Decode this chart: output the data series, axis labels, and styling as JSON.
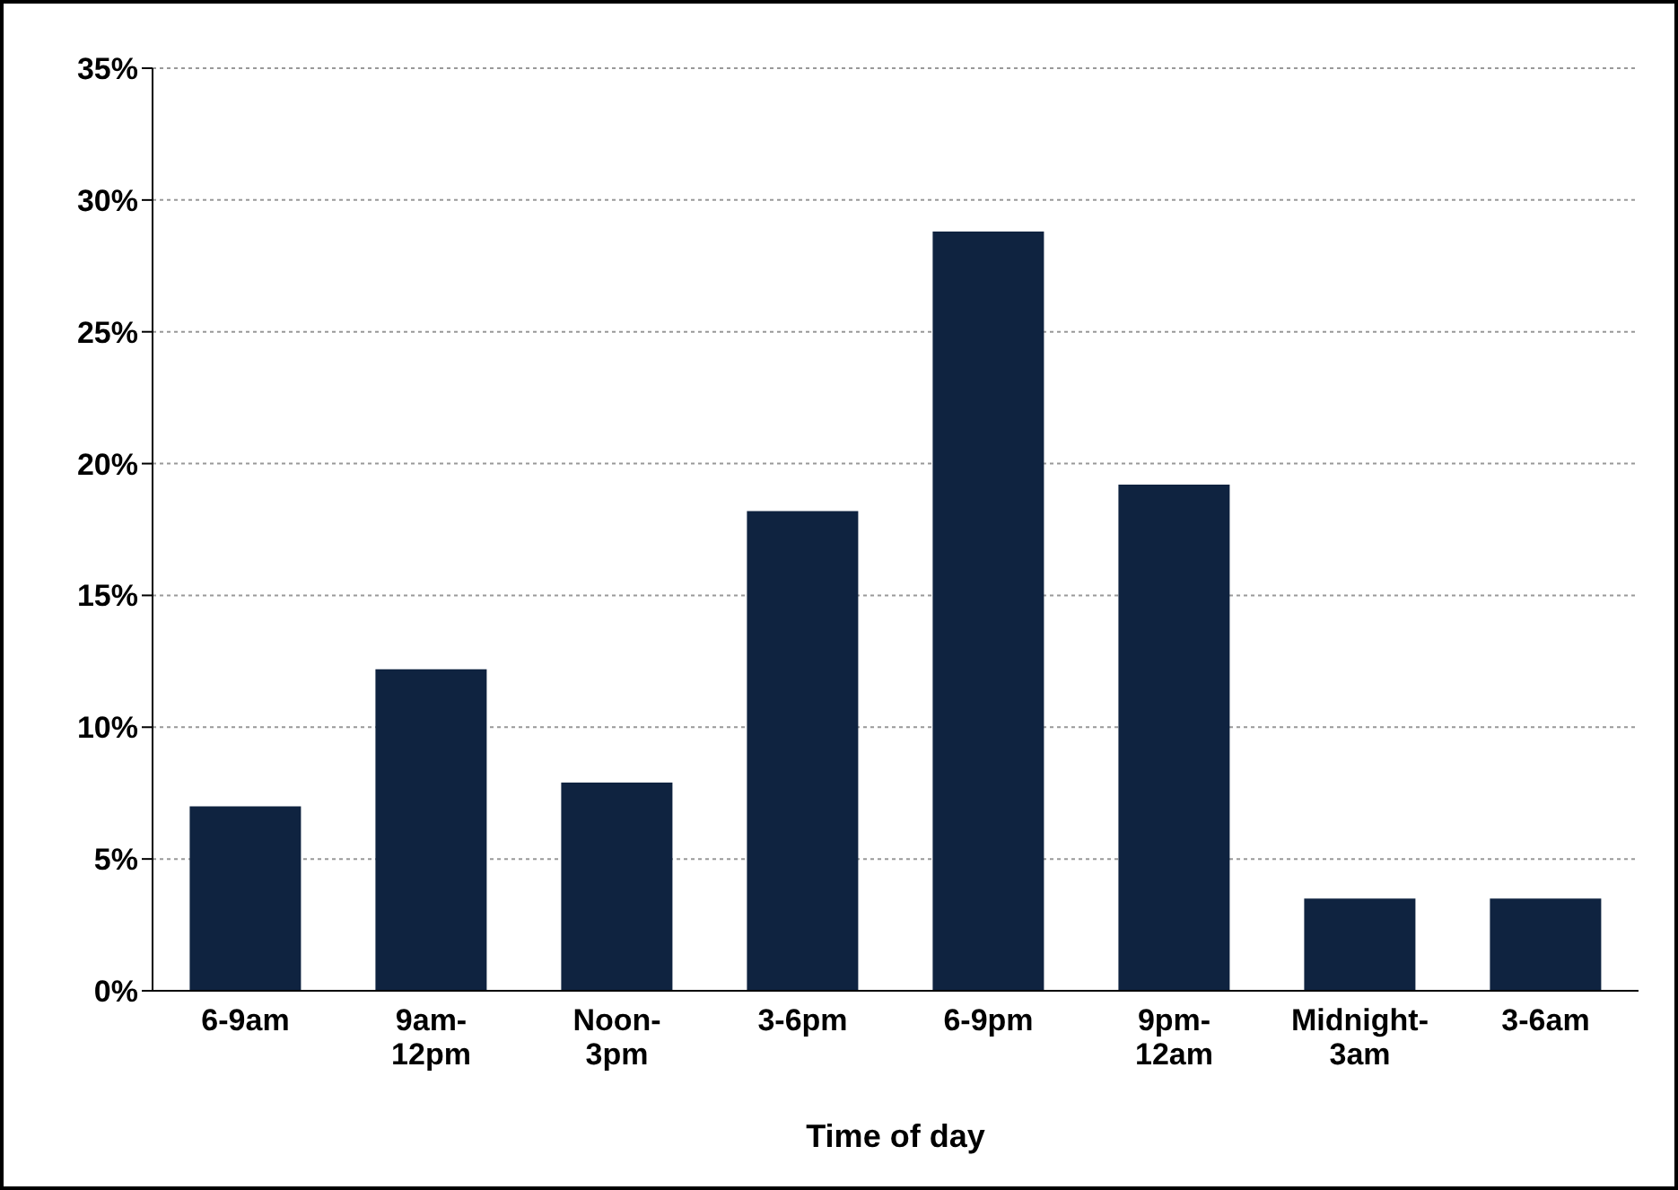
{
  "chart_data": {
    "type": "bar",
    "xlabel": "Time of day",
    "categories": [
      "6-9am",
      "9am-12pm",
      "Noon-3pm",
      "3-6pm",
      "6-9pm",
      "9pm-12am",
      "Midnight-3am",
      "3-6am"
    ],
    "values": [
      7.0,
      12.2,
      7.9,
      18.2,
      28.8,
      19.2,
      3.5,
      3.5
    ],
    "color": "#0f2340",
    "ylim": [
      0,
      35
    ],
    "yticks": [
      {
        "value": 0,
        "label": "0%"
      },
      {
        "value": 5,
        "label": "5%"
      },
      {
        "value": 10,
        "label": "10%"
      },
      {
        "value": 15,
        "label": "15%"
      },
      {
        "value": 20,
        "label": "20%"
      },
      {
        "value": 25,
        "label": "25%"
      },
      {
        "value": 30,
        "label": "30%"
      },
      {
        "value": 35,
        "label": "35%"
      }
    ],
    "grid": "y"
  }
}
